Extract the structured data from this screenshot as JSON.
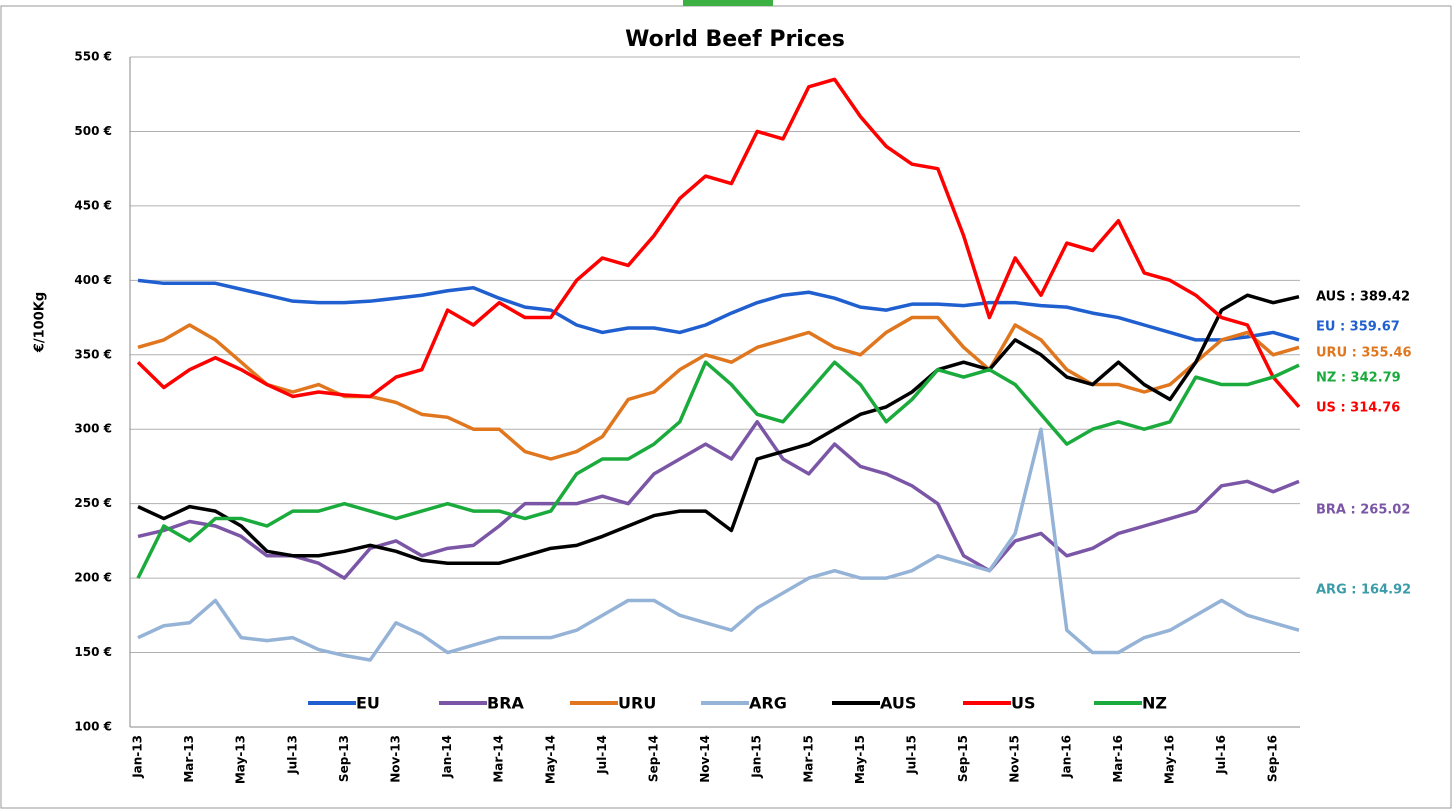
{
  "chart_data": {
    "type": "line",
    "title": "World Beef Prices",
    "y_label": "€/100Kg",
    "categories": [
      "Jan-13",
      null,
      "Mar-13",
      null,
      "May-13",
      null,
      "Jul-13",
      null,
      "Sep-13",
      null,
      "Nov-13",
      null,
      "Jan-14",
      null,
      "Mar-14",
      null,
      "May-14",
      null,
      "Jul-14",
      null,
      "Sep-14",
      null,
      "Nov-14",
      null,
      "Jan-15",
      null,
      "Mar-15",
      null,
      "May-15",
      null,
      "Jul-15",
      null,
      "Sep-15",
      null,
      "Nov-15",
      null,
      "Jan-16",
      null,
      "Mar-16",
      null,
      "May-16",
      null,
      "Jul-16",
      null,
      "Sep-16",
      null
    ],
    "ylim": [
      100,
      550
    ],
    "yticks": [
      {
        "value": 100,
        "label": "100 €"
      },
      {
        "value": 150,
        "label": "150 €"
      },
      {
        "value": 200,
        "label": "200 €"
      },
      {
        "value": 250,
        "label": "250 €"
      },
      {
        "value": 300,
        "label": "300 €"
      },
      {
        "value": 350,
        "label": "350 €"
      },
      {
        "value": 400,
        "label": "400 €"
      },
      {
        "value": 450,
        "label": "450 €"
      },
      {
        "value": 500,
        "label": "500 €"
      },
      {
        "value": 550,
        "label": "550 €"
      }
    ],
    "grid": true,
    "legend": "bottom",
    "series": [
      {
        "name": "EU",
        "color": "#1f5fcf",
        "values": [
          400,
          398,
          398,
          398,
          394,
          390,
          386,
          385,
          385,
          386,
          388,
          390,
          393,
          395,
          388,
          382,
          380,
          370,
          365,
          368,
          368,
          365,
          370,
          378,
          385,
          390,
          392,
          388,
          382,
          380,
          384,
          384,
          383,
          385,
          385,
          383,
          382,
          378,
          375,
          370,
          365,
          360,
          360,
          362,
          365,
          360
        ]
      },
      {
        "name": "BRA",
        "color": "#7b56a6",
        "values": [
          228,
          232,
          238,
          235,
          228,
          215,
          215,
          210,
          200,
          220,
          225,
          215,
          220,
          222,
          235,
          250,
          250,
          250,
          255,
          250,
          270,
          280,
          290,
          280,
          305,
          280,
          270,
          290,
          275,
          270,
          262,
          250,
          215,
          205,
          225,
          230,
          215,
          220,
          230,
          235,
          240,
          245,
          262,
          265,
          258,
          265
        ]
      },
      {
        "name": "URU",
        "color": "#e0761e",
        "values": [
          355,
          360,
          370,
          360,
          345,
          330,
          325,
          330,
          322,
          322,
          318,
          310,
          308,
          300,
          300,
          285,
          280,
          285,
          295,
          320,
          325,
          340,
          350,
          345,
          355,
          360,
          365,
          355,
          350,
          365,
          375,
          375,
          355,
          340,
          370,
          360,
          340,
          330,
          330,
          325,
          330,
          345,
          360,
          365,
          350,
          355
        ]
      },
      {
        "name": "ARG",
        "color": "#95b3d7",
        "values": [
          160,
          168,
          170,
          185,
          160,
          158,
          160,
          152,
          148,
          145,
          170,
          162,
          150,
          155,
          160,
          160,
          160,
          165,
          175,
          185,
          185,
          175,
          170,
          165,
          180,
          190,
          200,
          205,
          200,
          200,
          205,
          215,
          210,
          205,
          230,
          300,
          165,
          150,
          150,
          160,
          165,
          175,
          185,
          175,
          170,
          165
        ]
      },
      {
        "name": "AUS",
        "color": "#000000",
        "values": [
          248,
          240,
          248,
          245,
          235,
          218,
          215,
          215,
          218,
          222,
          218,
          212,
          210,
          210,
          210,
          215,
          220,
          222,
          228,
          235,
          242,
          245,
          245,
          232,
          280,
          285,
          290,
          300,
          310,
          315,
          325,
          340,
          345,
          340,
          360,
          350,
          335,
          330,
          345,
          330,
          320,
          345,
          380,
          390,
          385,
          389
        ]
      },
      {
        "name": "US",
        "color": "#ff0000",
        "values": [
          345,
          328,
          340,
          348,
          340,
          330,
          322,
          325,
          323,
          322,
          335,
          340,
          380,
          370,
          385,
          375,
          375,
          400,
          415,
          410,
          430,
          455,
          470,
          465,
          500,
          495,
          530,
          535,
          510,
          490,
          478,
          475,
          430,
          375,
          415,
          390,
          425,
          420,
          440,
          405,
          400,
          390,
          375,
          370,
          335,
          315
        ]
      },
      {
        "name": "NZ",
        "color": "#1aab3c",
        "values": [
          200,
          235,
          225,
          240,
          240,
          235,
          245,
          245,
          250,
          245,
          240,
          245,
          250,
          245,
          245,
          240,
          245,
          270,
          280,
          280,
          290,
          305,
          345,
          330,
          310,
          305,
          325,
          345,
          330,
          305,
          320,
          340,
          335,
          340,
          330,
          310,
          290,
          300,
          305,
          300,
          305,
          335,
          330,
          330,
          335,
          343
        ]
      }
    ],
    "annotations": [
      {
        "text": "AUS : 389.42",
        "color": "#000000"
      },
      {
        "text": "EU : 359.67",
        "color": "#1f5fcf"
      },
      {
        "text": "URU : 355.46",
        "color": "#e0761e"
      },
      {
        "text": "NZ : 342.79",
        "color": "#1aab3c"
      },
      {
        "text": "US : 314.76",
        "color": "#ff0000"
      },
      {
        "text": "BRA : 265.02",
        "color": "#7b56a6"
      },
      {
        "text": "ARG : 164.92",
        "color": "#3a9ca8"
      }
    ]
  }
}
